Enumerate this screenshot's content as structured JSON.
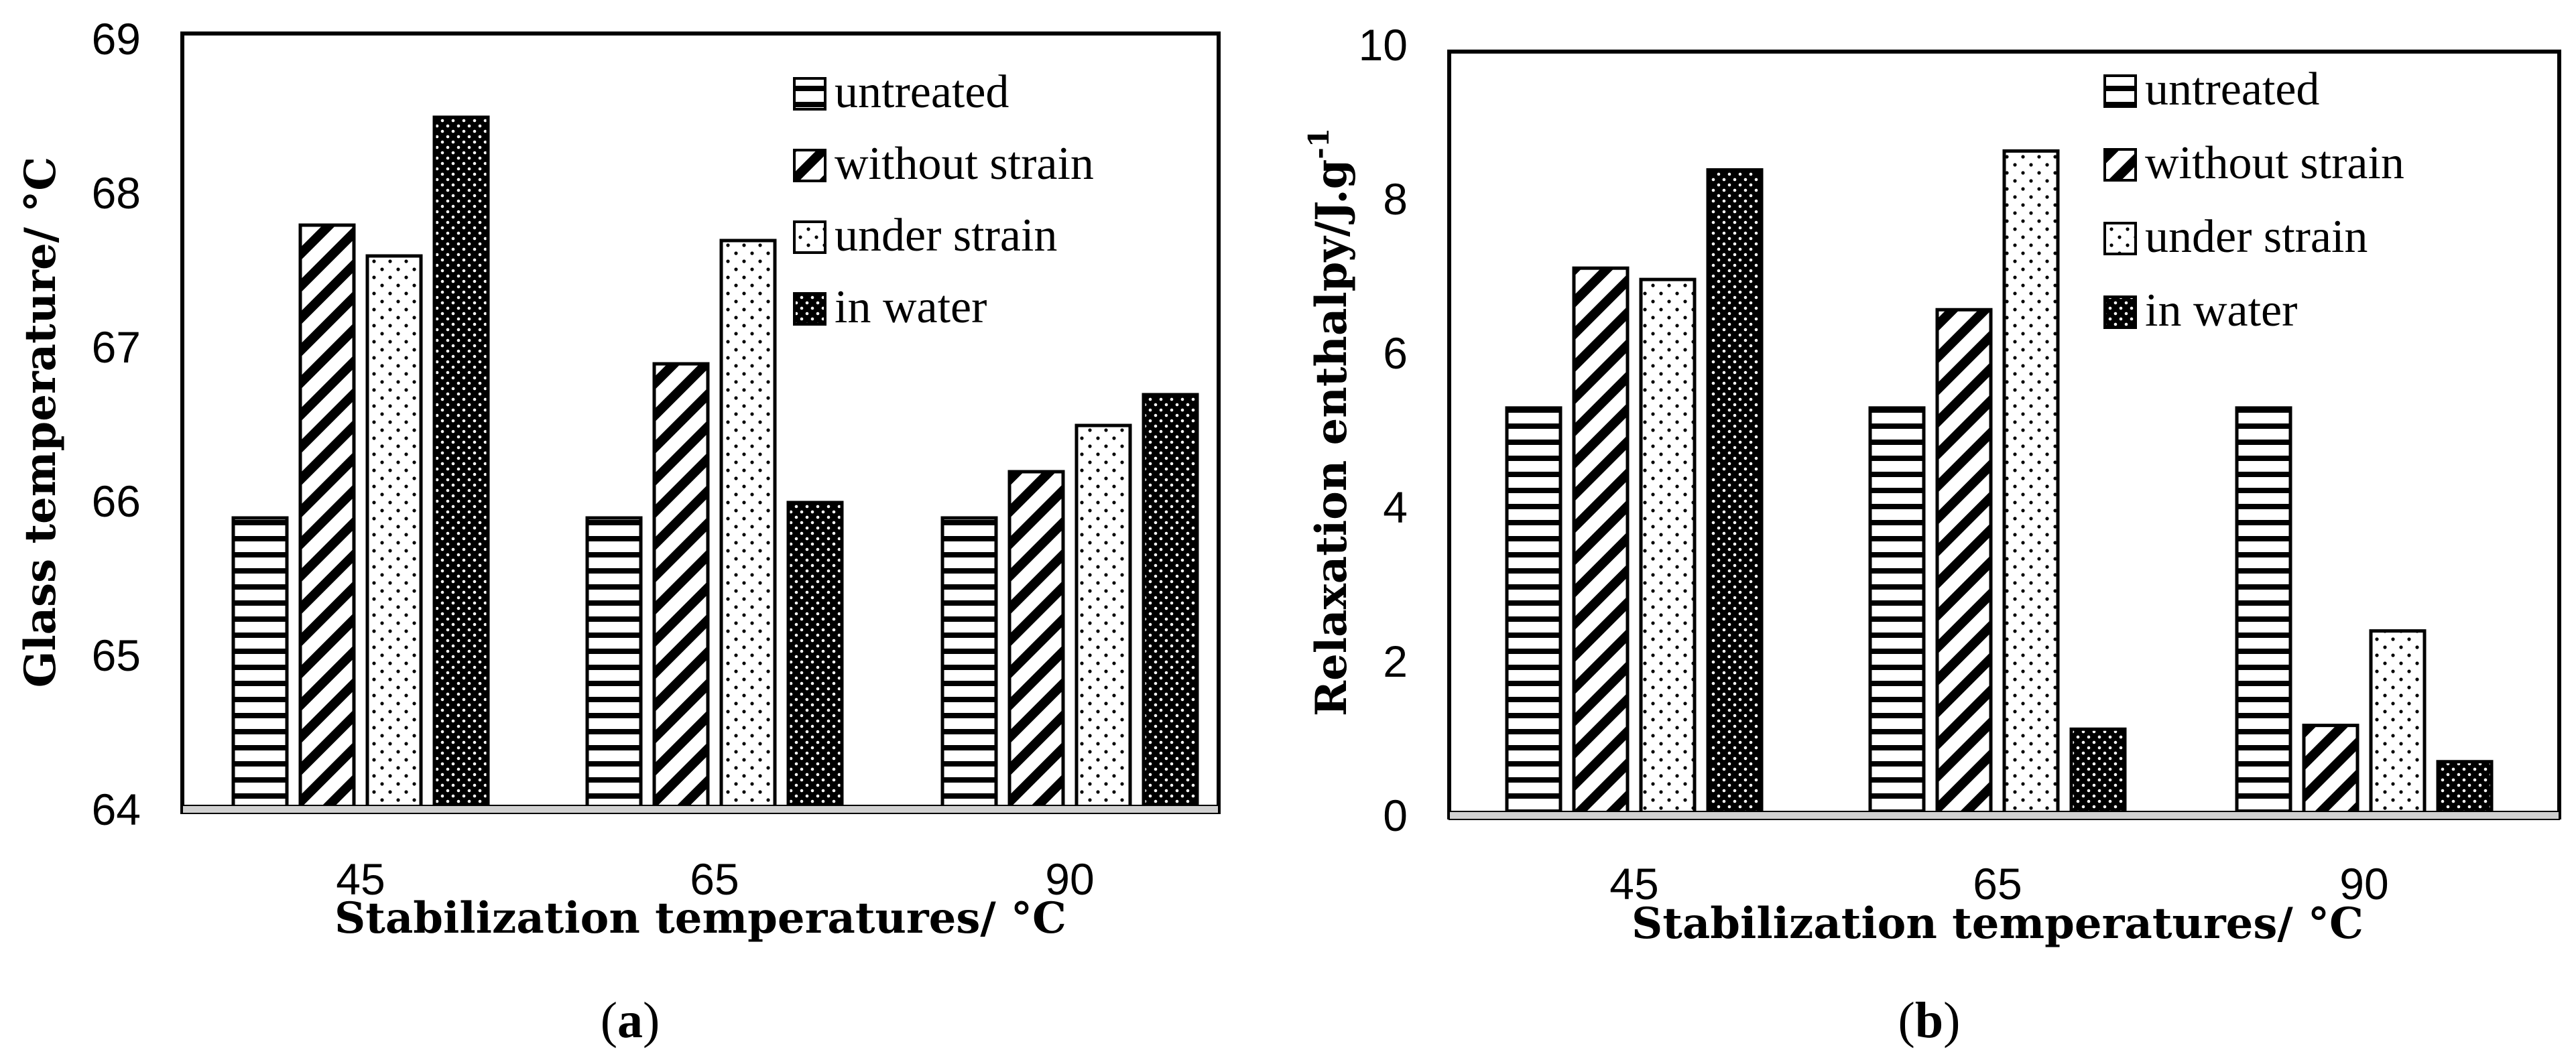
{
  "figure": {
    "charts": [
      {
        "caption_letter": "a",
        "ytick_labels": [
          "64",
          "65",
          "66",
          "67",
          "68",
          "69"
        ],
        "legend": [
          "untreated",
          "without strain",
          "under strain",
          "in water"
        ]
      },
      {
        "caption_letter": "b",
        "ytick_labels": [
          "0",
          "2",
          "4",
          "6",
          "8",
          "10"
        ],
        "legend": [
          "untreated",
          "without strain",
          "under strain",
          "in water"
        ]
      }
    ]
  },
  "chart_data": [
    {
      "type": "bar",
      "title": "",
      "xlabel": "Stabilization temperatures/ °C",
      "ylabel": "Glass temperature/ °C",
      "categories": [
        "45",
        "65",
        "90"
      ],
      "ylim": [
        64,
        69
      ],
      "grid": false,
      "legend_position": "top-right",
      "series": [
        {
          "name": "untreated",
          "pattern": "horizontal-lines",
          "values": [
            65.9,
            65.9,
            65.9
          ]
        },
        {
          "name": "without strain",
          "pattern": "diagonal-lines",
          "values": [
            67.8,
            66.9,
            66.2
          ]
        },
        {
          "name": "under strain",
          "pattern": "sparse-dots",
          "values": [
            67.6,
            67.7,
            66.5
          ]
        },
        {
          "name": "in water",
          "pattern": "dense-dots",
          "values": [
            68.5,
            66.0,
            66.7
          ]
        }
      ]
    },
    {
      "type": "bar",
      "title": "",
      "xlabel": "Stabilization temperatures/ °C",
      "ylabel": "Relaxation enthalpy/J.g",
      "ylabel_superscript": "-1",
      "categories": [
        "45",
        "65",
        "90"
      ],
      "ylim": [
        0,
        10
      ],
      "grid": false,
      "legend_position": "top-right",
      "series": [
        {
          "name": "untreated",
          "pattern": "horizontal-lines",
          "values": [
            5.4,
            5.4,
            5.4
          ]
        },
        {
          "name": "without strain",
          "pattern": "diagonal-lines",
          "values": [
            7.25,
            6.7,
            1.2
          ]
        },
        {
          "name": "under strain",
          "pattern": "sparse-dots",
          "values": [
            7.1,
            8.8,
            2.45
          ]
        },
        {
          "name": "in water",
          "pattern": "dense-dots",
          "values": [
            8.55,
            1.15,
            0.72
          ]
        }
      ]
    }
  ]
}
